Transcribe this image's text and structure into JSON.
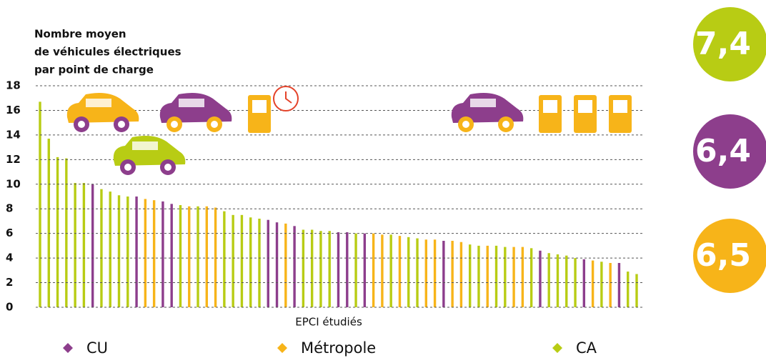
{
  "chart_data": {
    "type": "bar",
    "y_label": [
      "Nombre moyen",
      "de véhicules électriques",
      "par point de charge"
    ],
    "x_label": "EPCI étudiés",
    "ylim": [
      0,
      18
    ],
    "yticks": [
      0,
      2,
      4,
      6,
      8,
      10,
      12,
      14,
      16,
      18
    ],
    "grid": true,
    "categories": [
      null,
      null,
      null,
      null,
      null,
      null,
      null,
      null,
      null,
      null,
      null,
      null,
      null,
      null,
      null,
      null,
      null,
      null,
      null,
      null,
      null,
      null,
      null,
      null,
      null,
      null,
      null,
      null,
      null,
      null,
      null,
      null,
      null,
      null,
      null,
      null,
      null,
      null,
      null,
      null,
      null,
      null,
      null,
      null,
      null,
      null,
      null,
      null,
      null,
      null,
      null,
      null,
      null,
      null,
      null,
      null,
      null,
      null,
      null,
      null,
      null,
      null,
      null,
      null,
      null,
      null,
      null,
      null,
      null
    ],
    "series": [
      {
        "name": "CU",
        "color": "#8d3e8c",
        "values": [
          null,
          null,
          null,
          null,
          null,
          null,
          10.0,
          null,
          null,
          null,
          null,
          9.0,
          null,
          null,
          8.6,
          8.4,
          null,
          null,
          null,
          null,
          null,
          null,
          null,
          null,
          null,
          null,
          7.1,
          6.9,
          null,
          6.6,
          null,
          null,
          null,
          null,
          6.1,
          6.1,
          null,
          6.0,
          null,
          null,
          null,
          null,
          null,
          null,
          null,
          null,
          5.4,
          null,
          null,
          null,
          null,
          null,
          null,
          null,
          null,
          null,
          null,
          4.6,
          null,
          null,
          null,
          null,
          3.9,
          null,
          null,
          null,
          3.6,
          null,
          null
        ]
      },
      {
        "name": "Métropole",
        "color": "#f7b419",
        "values": [
          null,
          null,
          null,
          null,
          null,
          null,
          null,
          null,
          null,
          null,
          null,
          null,
          8.8,
          8.7,
          null,
          null,
          null,
          8.2,
          null,
          8.2,
          8.1,
          null,
          null,
          null,
          null,
          null,
          null,
          null,
          6.8,
          null,
          null,
          null,
          null,
          null,
          null,
          null,
          null,
          null,
          6.0,
          5.9,
          null,
          5.8,
          null,
          null,
          5.5,
          5.5,
          null,
          5.4,
          5.3,
          null,
          null,
          5.0,
          null,
          null,
          4.9,
          4.9,
          null,
          null,
          null,
          null,
          null,
          null,
          null,
          3.8,
          null,
          3.6,
          null,
          null,
          null
        ]
      },
      {
        "name": "CA",
        "color": "#b8cc14",
        "values": [
          16.7,
          13.7,
          12.2,
          12.1,
          10.1,
          10.1,
          null,
          9.6,
          9.4,
          9.1,
          9.0,
          null,
          null,
          null,
          null,
          null,
          8.3,
          null,
          8.2,
          null,
          null,
          7.8,
          7.5,
          7.5,
          7.3,
          7.2,
          null,
          null,
          null,
          null,
          6.3,
          6.3,
          6.2,
          6.2,
          null,
          null,
          6.0,
          null,
          null,
          null,
          5.9,
          null,
          5.7,
          5.6,
          null,
          null,
          null,
          null,
          null,
          5.1,
          5.0,
          null,
          5.0,
          4.9,
          null,
          null,
          4.8,
          null,
          4.4,
          4.3,
          4.2,
          4.0,
          null,
          null,
          3.7,
          null,
          null,
          2.9,
          2.7
        ]
      }
    ],
    "averages": {
      "values": [
        7.4,
        6.4,
        6.5
      ],
      "value_labels": [
        "7,4",
        "6,4",
        "6,5"
      ],
      "colors": [
        "#b8cc14",
        "#8d3e8c",
        "#f7b419"
      ]
    }
  }
}
